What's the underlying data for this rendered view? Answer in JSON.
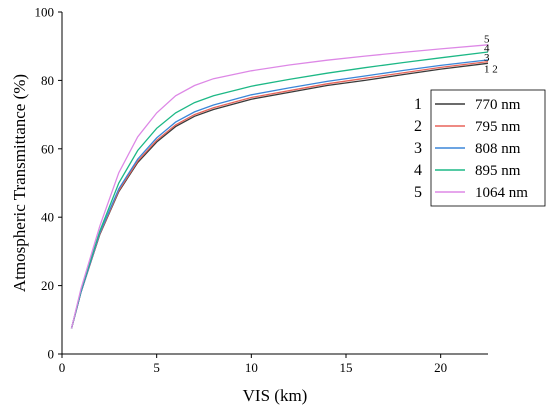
{
  "chart_data": {
    "type": "line",
    "title": "",
    "xlabel": "VIS (km)",
    "ylabel": "Atmospheric Transmittance (%)",
    "xlim": [
      0,
      22.5
    ],
    "ylim": [
      0,
      100
    ],
    "xticks": [
      0,
      5,
      10,
      15,
      20
    ],
    "yticks": [
      0,
      20,
      40,
      60,
      80,
      100
    ],
    "grid": false,
    "legend_position": "right",
    "series": [
      {
        "name": "770 nm",
        "number": "1",
        "color": "#3a3a3a",
        "x": [
          0.5,
          1,
          2,
          3,
          4,
          5,
          6,
          7,
          8,
          10,
          12,
          14,
          16,
          18,
          20,
          22.5
        ],
        "y": [
          7.5,
          18,
          35,
          47.5,
          56,
          62,
          66.5,
          69.5,
          71.5,
          74.5,
          76.5,
          78.5,
          80,
          81.7,
          83.3,
          85
        ]
      },
      {
        "name": "795 nm",
        "number": "2",
        "color": "#e8645a",
        "x": [
          0.5,
          1,
          2,
          3,
          4,
          5,
          6,
          7,
          8,
          10,
          12,
          14,
          16,
          18,
          20,
          22.5
        ],
        "y": [
          7.5,
          18,
          35.2,
          47.8,
          56.4,
          62.5,
          67,
          70,
          72,
          75,
          77,
          79,
          80.6,
          82.2,
          83.8,
          85.5
        ]
      },
      {
        "name": "808 nm",
        "number": "3",
        "color": "#3b86d8",
        "x": [
          0.5,
          1,
          2,
          3,
          4,
          5,
          6,
          7,
          8,
          10,
          12,
          14,
          16,
          18,
          20,
          22.5
        ],
        "y": [
          7.5,
          18,
          35.5,
          48.3,
          57,
          63.2,
          67.8,
          70.8,
          72.8,
          75.8,
          77.8,
          79.7,
          81.3,
          82.9,
          84.4,
          86
        ]
      },
      {
        "name": "895 nm",
        "number": "4",
        "color": "#1db886",
        "x": [
          0.5,
          1,
          2,
          3,
          4,
          5,
          6,
          7,
          8,
          10,
          12,
          14,
          16,
          18,
          20,
          22.5
        ],
        "y": [
          7.5,
          18.5,
          36,
          50,
          59.5,
          66,
          70.5,
          73.5,
          75.5,
          78.3,
          80.3,
          82.1,
          83.7,
          85.2,
          86.6,
          88.3
        ]
      },
      {
        "name": "1064 nm",
        "number": "5",
        "color": "#dd88e6",
        "x": [
          0.5,
          1,
          2,
          3,
          4,
          5,
          6,
          7,
          8,
          10,
          12,
          14,
          16,
          18,
          20,
          22.5
        ],
        "y": [
          7.5,
          19,
          37.5,
          53,
          63.5,
          70.5,
          75.5,
          78.5,
          80.5,
          82.8,
          84.5,
          85.9,
          87.1,
          88.2,
          89.2,
          90.4
        ]
      }
    ],
    "end_labels": [
      {
        "text": "5",
        "y": 92
      },
      {
        "text": "4",
        "y": 89.3
      },
      {
        "text": "3",
        "y": 86.5
      },
      {
        "text": "1 2",
        "y": 83.2
      }
    ]
  }
}
